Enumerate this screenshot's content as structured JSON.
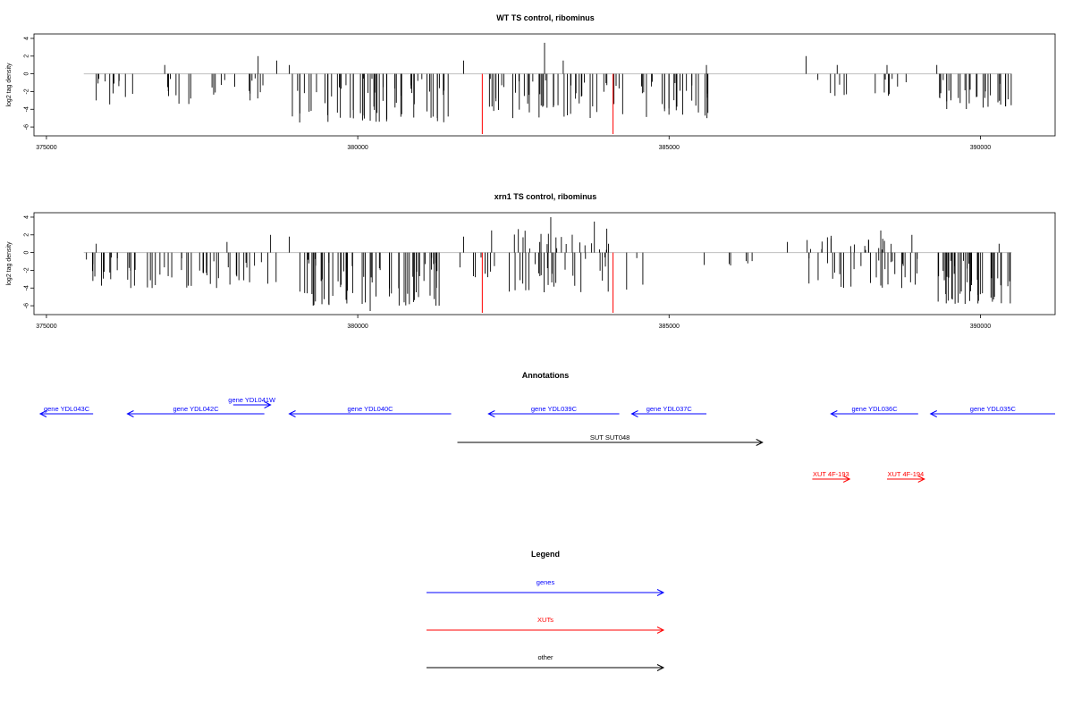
{
  "chart_data": [
    {
      "type": "bar",
      "title": "WT TS control, ribominus",
      "ylabel": "log2 tag density",
      "xlim": [
        374800,
        391200
      ],
      "ylim": [
        -7,
        4.5
      ],
      "x_ticks": [
        375000,
        380000,
        385000,
        390000
      ],
      "y_ticks": [
        -6,
        -4,
        -2,
        0,
        2,
        4
      ],
      "baseline_x": [
        375600,
        390500
      ],
      "seed": 7,
      "blocks": [
        {
          "from": 375800,
          "to": 376400,
          "density": 10,
          "min": -3.5,
          "max": -0.5
        },
        {
          "from": 376900,
          "to": 377400,
          "density": 8,
          "min": -3.5,
          "max": -0.5
        },
        {
          "from": 377500,
          "to": 378100,
          "density": 6,
          "min": -2.5,
          "max": -0.5
        },
        {
          "from": 378200,
          "to": 378600,
          "density": 8,
          "min": -3,
          "max": -0.5
        },
        {
          "from": 379000,
          "to": 381500,
          "density": 60,
          "min": -5.5,
          "max": -0.5
        },
        {
          "from": 382100,
          "to": 385700,
          "density": 75,
          "min": -5,
          "max": -0.5
        },
        {
          "from": 387300,
          "to": 388000,
          "density": 6,
          "min": -2.5,
          "max": -0.5
        },
        {
          "from": 388300,
          "to": 388900,
          "density": 8,
          "min": -2.5,
          "max": -0.5
        },
        {
          "from": 389200,
          "to": 390500,
          "density": 30,
          "min": -4,
          "max": -0.5
        }
      ],
      "spikes": [
        {
          "x": 375800,
          "y": -3
        },
        {
          "x": 376900,
          "y": 1
        },
        {
          "x": 378400,
          "y": 2
        },
        {
          "x": 378700,
          "y": 1.5
        },
        {
          "x": 378900,
          "y": 1
        },
        {
          "x": 378950,
          "y": -4.8
        },
        {
          "x": 380200,
          "y": -5.3
        },
        {
          "x": 381700,
          "y": 1.5
        },
        {
          "x": 383000,
          "y": 3.5
        },
        {
          "x": 383300,
          "y": 1.5
        },
        {
          "x": 385600,
          "y": 1
        },
        {
          "x": 387200,
          "y": 2
        },
        {
          "x": 387700,
          "y": 1
        },
        {
          "x": 388500,
          "y": 1
        },
        {
          "x": 389300,
          "y": 1
        }
      ],
      "red_lines": [
        {
          "x": 382000,
          "y": -6.8
        },
        {
          "x": 384100,
          "y": -6.8
        }
      ],
      "colors": {
        "bars": "#000000",
        "highlight": "#ff0000",
        "baseline": "#bfbfbf"
      }
    },
    {
      "type": "bar",
      "title": "xrn1 TS control, ribominus",
      "ylabel": "log2 tag density",
      "xlim": [
        374800,
        391200
      ],
      "ylim": [
        -7,
        4.5
      ],
      "x_ticks": [
        375000,
        380000,
        385000,
        390000
      ],
      "y_ticks": [
        -6,
        -4,
        -2,
        0,
        2,
        4
      ],
      "baseline_x": [
        375600,
        390500
      ],
      "seed": 19,
      "blocks": [
        {
          "from": 375600,
          "to": 378700,
          "density": 55,
          "min": -4,
          "max": -0.5
        },
        {
          "from": 378900,
          "to": 381400,
          "density": 65,
          "min": -6,
          "max": -0.5
        },
        {
          "from": 381600,
          "to": 382200,
          "density": 8,
          "min": -3,
          "max": -0.5
        },
        {
          "from": 382300,
          "to": 384600,
          "density": 30,
          "min": -4.5,
          "max": -0.3
        },
        {
          "from": 385500,
          "to": 386500,
          "density": 6,
          "min": -1.5,
          "max": -0.3
        },
        {
          "from": 387200,
          "to": 389000,
          "density": 30,
          "min": -4,
          "max": -0.5
        },
        {
          "from": 389300,
          "to": 390500,
          "density": 45,
          "min": -5.8,
          "max": -0.5
        }
      ],
      "pos_blocks": [
        {
          "from": 382500,
          "to": 384200,
          "density": 20,
          "min": 0.3,
          "max": 3
        },
        {
          "from": 387200,
          "to": 388700,
          "density": 18,
          "min": 0.3,
          "max": 2
        }
      ],
      "spikes": [
        {
          "x": 375800,
          "y": 1
        },
        {
          "x": 377900,
          "y": 1.2
        },
        {
          "x": 378600,
          "y": 2
        },
        {
          "x": 378900,
          "y": 1.8
        },
        {
          "x": 380200,
          "y": -6.6
        },
        {
          "x": 381700,
          "y": 1.8
        },
        {
          "x": 382150,
          "y": 2.5
        },
        {
          "x": 383100,
          "y": 4
        },
        {
          "x": 383800,
          "y": 3.5
        },
        {
          "x": 384000,
          "y": 2.7
        },
        {
          "x": 386900,
          "y": 1.2
        },
        {
          "x": 388400,
          "y": 2.5
        },
        {
          "x": 388900,
          "y": 2
        },
        {
          "x": 390300,
          "y": 1
        }
      ],
      "red_lines": [
        {
          "x": 382000,
          "y": -6.8
        },
        {
          "x": 384100,
          "y": -6.8
        }
      ],
      "colors": {
        "bars": "#000000",
        "highlight": "#ff0000",
        "baseline": "#bfbfbf"
      }
    }
  ],
  "annotations": {
    "title": "Annotations",
    "rows": [
      {
        "label": "gene YDL043C",
        "from": 375750,
        "to": 374900,
        "row": 2,
        "color": "#0000ff"
      },
      {
        "label": "gene YDL042C",
        "from": 378500,
        "to": 376300,
        "row": 2,
        "color": "#0000ff"
      },
      {
        "label": "gene YDL041W",
        "from": 378000,
        "to": 378600,
        "row": 1,
        "color": "#0000ff"
      },
      {
        "label": "gene YDL040C",
        "from": 381500,
        "to": 378900,
        "row": 2,
        "color": "#0000ff"
      },
      {
        "label": "gene YDL039C",
        "from": 384200,
        "to": 382100,
        "row": 2,
        "color": "#0000ff"
      },
      {
        "label": "gene YDL037C",
        "from": 385600,
        "to": 384400,
        "row": 2,
        "color": "#0000ff"
      },
      {
        "label": "gene YDL036C",
        "from": 389000,
        "to": 387600,
        "row": 2,
        "color": "#0000ff"
      },
      {
        "label": "gene YDL035C",
        "from": 391200,
        "to": 389200,
        "row": 2,
        "color": "#0000ff"
      },
      {
        "label": "SUT SUT048",
        "from": 381600,
        "to": 386500,
        "row": 3,
        "color": "#000000"
      },
      {
        "label": "XUT 4F-193",
        "from": 387300,
        "to": 387900,
        "row": 4,
        "color": "#ff0000"
      },
      {
        "label": "XUT 4F-194",
        "from": 388500,
        "to": 389100,
        "row": 4,
        "color": "#ff0000"
      }
    ]
  },
  "legend": {
    "title": "Legend",
    "items": [
      {
        "label": "genes",
        "color": "#0000ff"
      },
      {
        "label": "XUTs",
        "color": "#ff0000"
      },
      {
        "label": "other",
        "color": "#000000"
      }
    ]
  }
}
